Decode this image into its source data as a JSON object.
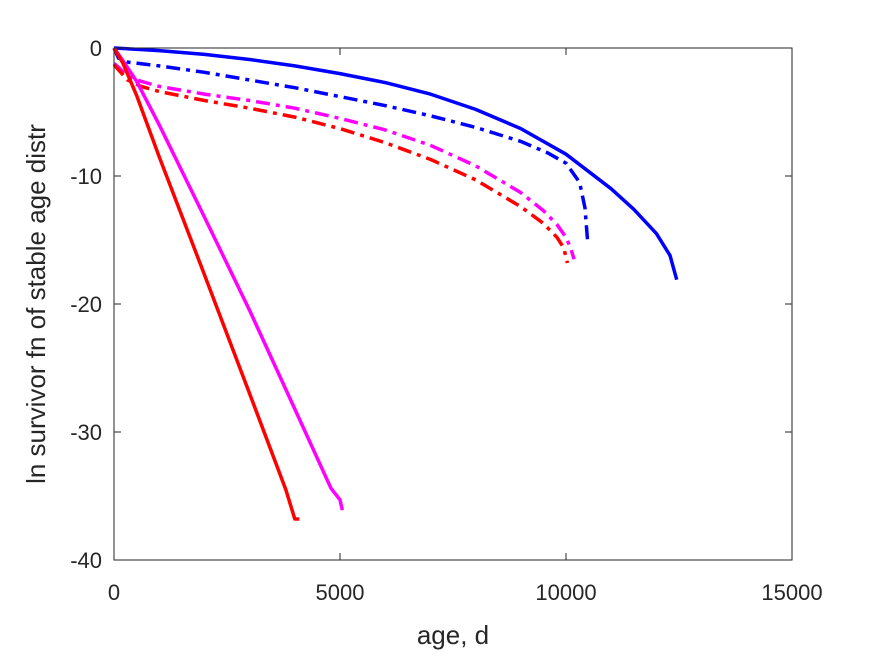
{
  "chart_data": {
    "type": "line",
    "title": "",
    "xlabel": "age, d",
    "ylabel": "ln survivor fn of stable age distr",
    "xlim": [
      0,
      15000
    ],
    "ylim": [
      -40,
      0
    ],
    "xticks": [
      0,
      5000,
      10000,
      15000
    ],
    "yticks": [
      0,
      -10,
      -20,
      -30,
      -40
    ],
    "xtick_labels": [
      "0",
      "5000",
      "10000",
      "15000"
    ],
    "ytick_labels": [
      "0",
      "-10",
      "-20",
      "-30",
      "-40"
    ],
    "grid": false,
    "legend": "none",
    "series": [
      {
        "color": "#0000ff",
        "style": "solid",
        "x": [
          0,
          1000,
          2000,
          3000,
          4000,
          5000,
          6000,
          7000,
          8000,
          9000,
          10000,
          11000,
          11500,
          12000,
          12300,
          12450
        ],
        "y": [
          0,
          -0.2,
          -0.5,
          -0.9,
          -1.4,
          -2.0,
          -2.7,
          -3.6,
          -4.8,
          -6.3,
          -8.3,
          -11.0,
          -12.6,
          -14.5,
          -16.2,
          -18.1
        ]
      },
      {
        "color": "#0000ff",
        "style": "dashdot",
        "x": [
          0,
          100,
          300,
          1000,
          2000,
          3000,
          4000,
          5000,
          6000,
          7000,
          8000,
          9000,
          9600,
          10000,
          10300,
          10420,
          10480
        ],
        "y": [
          0,
          -0.8,
          -1.1,
          -1.4,
          -1.9,
          -2.5,
          -3.1,
          -3.8,
          -4.5,
          -5.3,
          -6.2,
          -7.3,
          -8.2,
          -9.0,
          -10.5,
          -12.5,
          -15.2
        ]
      },
      {
        "color": "#ff00ff",
        "style": "dashdot",
        "x": [
          0,
          100,
          300,
          600,
          1000,
          2000,
          3000,
          4000,
          5000,
          6000,
          7000,
          8000,
          9000,
          9500,
          9800,
          10000,
          10100,
          10180
        ],
        "y": [
          -1.2,
          -1.5,
          -2.2,
          -2.6,
          -3.0,
          -3.6,
          -4.1,
          -4.7,
          -5.5,
          -6.4,
          -7.6,
          -9.2,
          -11.3,
          -12.7,
          -13.8,
          -14.8,
          -15.6,
          -16.5
        ]
      },
      {
        "color": "#ff0000",
        "style": "dashdot",
        "x": [
          0,
          100,
          300,
          600,
          1000,
          2000,
          3000,
          4000,
          5000,
          6000,
          7000,
          8000,
          9000,
          9500,
          9800,
          9950,
          10030
        ],
        "y": [
          -1.3,
          -1.7,
          -2.5,
          -3.0,
          -3.4,
          -4.1,
          -4.7,
          -5.4,
          -6.3,
          -7.4,
          -8.7,
          -10.3,
          -12.4,
          -13.7,
          -14.8,
          -15.6,
          -16.8
        ]
      },
      {
        "color": "#ff00ff",
        "style": "solid",
        "x": [
          0,
          200,
          500,
          1000,
          2000,
          3000,
          4000,
          4800,
          5000,
          5050
        ],
        "y": [
          0,
          -1.0,
          -2.6,
          -6.0,
          -13.2,
          -20.5,
          -28.2,
          -34.4,
          -35.3,
          -36.1
        ]
      },
      {
        "color": "#ff0000",
        "style": "solid",
        "x": [
          0,
          200,
          500,
          1000,
          2000,
          3000,
          3800,
          4000,
          4100
        ],
        "y": [
          0,
          -1.2,
          -3.7,
          -8.5,
          -17.7,
          -27.0,
          -34.5,
          -36.8,
          -36.8
        ]
      }
    ]
  }
}
